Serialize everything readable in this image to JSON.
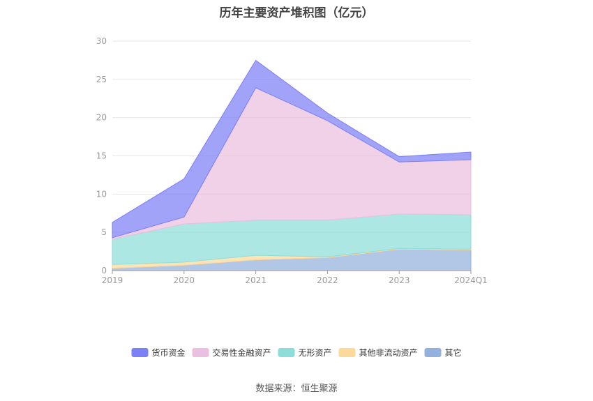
{
  "title": "历年主要资产堆积图（亿元）",
  "source": "数据来源：恒生聚源",
  "colors": {
    "货币资金": "#7b80f5",
    "交易性金融资产": "#ebbfdf",
    "无形资产": "#8dded9",
    "其他非流动资产": "#fbd99a",
    "其它": "#94b0dc"
  },
  "chart_data": {
    "type": "area",
    "stacked": true,
    "title": "历年主要资产堆积图（亿元）",
    "x": [
      "2019",
      "2020",
      "2021",
      "2022",
      "2023",
      "2024Q1"
    ],
    "ylim": [
      0,
      30
    ],
    "yticks": [
      0,
      5,
      10,
      15,
      20,
      25,
      30
    ],
    "grid": true,
    "legend_position": "bottom",
    "series": [
      {
        "name": "其它",
        "values": [
          0.3,
          0.7,
          1.4,
          1.7,
          2.8,
          2.7
        ]
      },
      {
        "name": "其他非流动资产",
        "values": [
          0.5,
          0.4,
          0.6,
          0.1,
          0.1,
          0.1
        ]
      },
      {
        "name": "无形资产",
        "values": [
          3.3,
          5.0,
          4.6,
          4.8,
          4.5,
          4.5
        ]
      },
      {
        "name": "交易性金融资产",
        "values": [
          0.2,
          0.9,
          17.3,
          13.0,
          6.8,
          7.2
        ]
      },
      {
        "name": "货币资金",
        "values": [
          2.0,
          5.0,
          3.6,
          1.0,
          0.7,
          1.0
        ]
      }
    ],
    "legend_order": [
      "货币资金",
      "交易性金融资产",
      "无形资产",
      "其他非流动资产",
      "其它"
    ]
  }
}
